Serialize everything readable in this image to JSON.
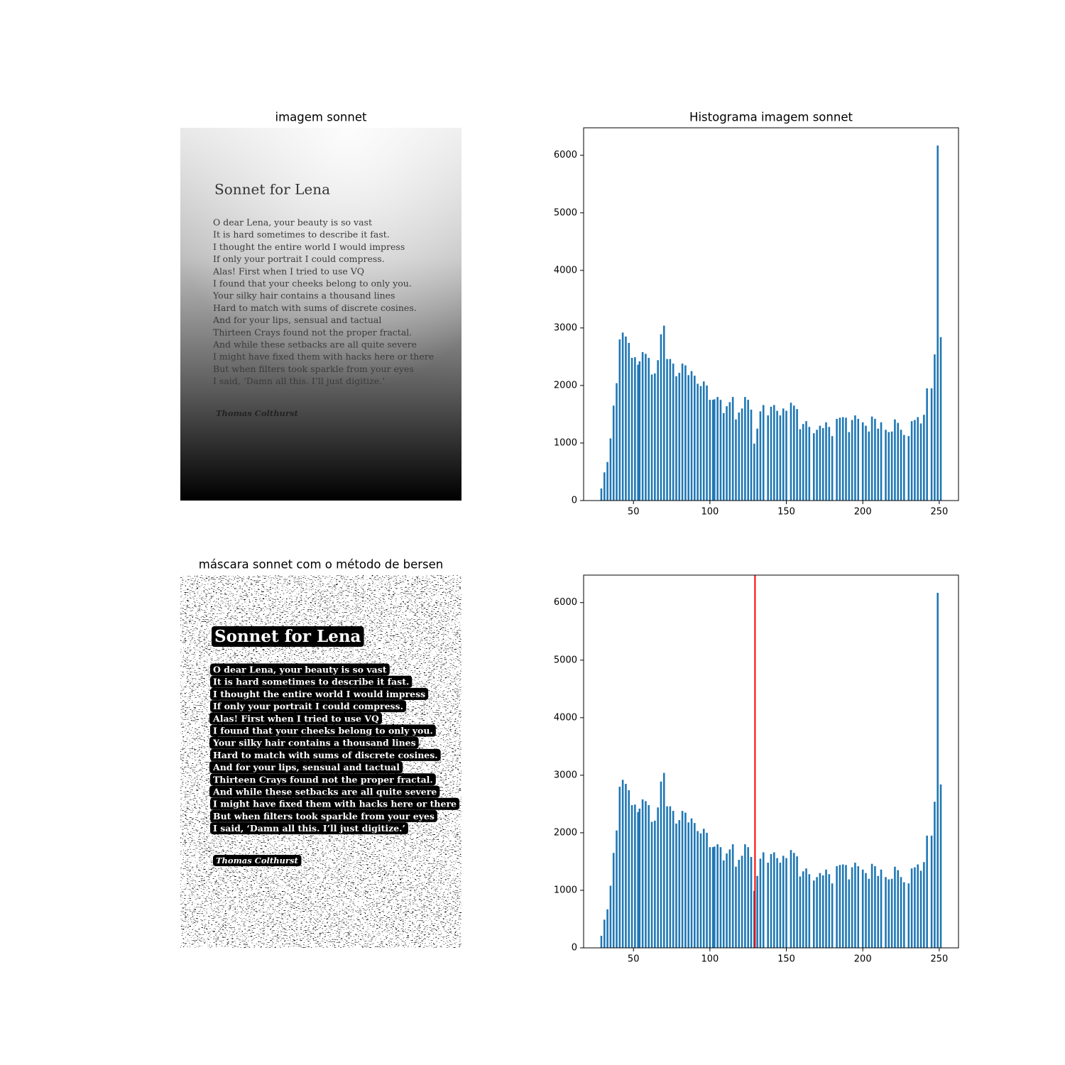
{
  "chart_data": [
    {
      "type": "image",
      "title": "imagem sonnet",
      "text": {
        "heading": "Sonnet for Lena",
        "lines": [
          "O dear Lena, your beauty is so vast",
          "It is hard sometimes to describe it fast.",
          "I thought the entire world I would impress",
          "If only your portrait I could compress.",
          "Alas! First when I tried to use VQ",
          "I found that your cheeks belong to only you.",
          "Your silky hair contains a thousand lines",
          "Hard to match with sums of discrete cosines.",
          "And for your lips, sensual and tactual",
          "Thirteen Crays found not the proper fractal.",
          "And while these setbacks are all quite severe",
          "I might have fixed them with hacks here or there",
          "But when filters took sparkle from your eyes",
          "I said, ‘Damn all this. I’ll just digitize.’"
        ],
        "author": "Thomas Colthurst"
      }
    },
    {
      "type": "bar",
      "title": "Histograma imagem sonnet",
      "color": "#1f77b4",
      "x": [
        29,
        31,
        33,
        35,
        37,
        39,
        41,
        43,
        45,
        47,
        49,
        51,
        53,
        54,
        56,
        58,
        60,
        62,
        64,
        66,
        68,
        70,
        72,
        74,
        76,
        78,
        80,
        82,
        84,
        86,
        88,
        90,
        92,
        94,
        96,
        98,
        100,
        102,
        103,
        105,
        107,
        109,
        111,
        113,
        115,
        117,
        119,
        121,
        123,
        125,
        127,
        129,
        131,
        133,
        135,
        138,
        140,
        142,
        144,
        146,
        148,
        150,
        153,
        155,
        157,
        159,
        161,
        163,
        165,
        168,
        170,
        172,
        174,
        176,
        178,
        180,
        183,
        185,
        187,
        189,
        191,
        193,
        195,
        197,
        200,
        202,
        204,
        206,
        208,
        210,
        212,
        215,
        217,
        219,
        221,
        223,
        225,
        227,
        230,
        232,
        234,
        236,
        238,
        240,
        242,
        245,
        247,
        249,
        251
      ],
      "values": [
        210,
        490,
        670,
        1080,
        1650,
        2040,
        2800,
        2920,
        2850,
        2740,
        2480,
        2490,
        2360,
        2420,
        2580,
        2550,
        2480,
        2190,
        2210,
        2440,
        2890,
        3040,
        2460,
        2460,
        2380,
        2160,
        2220,
        2380,
        2350,
        2180,
        2250,
        2170,
        2030,
        1990,
        2070,
        2000,
        1750,
        1750,
        1760,
        1800,
        1750,
        1520,
        1640,
        1710,
        1800,
        1410,
        1530,
        1600,
        1800,
        1750,
        1580,
        990,
        1250,
        1550,
        1660,
        1480,
        1630,
        1660,
        1560,
        1480,
        1600,
        1560,
        1700,
        1650,
        1590,
        1240,
        1330,
        1380,
        1280,
        1170,
        1230,
        1300,
        1260,
        1360,
        1280,
        1120,
        1420,
        1440,
        1450,
        1440,
        1190,
        1400,
        1480,
        1420,
        1360,
        1300,
        1200,
        1460,
        1420,
        1250,
        1360,
        1230,
        1190,
        1200,
        1410,
        1350,
        1230,
        1140,
        1120,
        1380,
        1400,
        1450,
        1340,
        1490,
        1950,
        1950,
        2540,
        6170,
        2840
      ],
      "xlim": [
        17.4,
        262.6
      ],
      "ylim": [
        0,
        6478
      ],
      "xticks": [
        50,
        100,
        150,
        200,
        250
      ],
      "yticks": [
        0,
        1000,
        2000,
        3000,
        4000,
        5000,
        6000
      ]
    },
    {
      "type": "binary_image",
      "title": "máscara sonnet com o método de bersen",
      "text": {
        "heading": "Sonnet for Lena",
        "lines": [
          "O dear Lena, your beauty is so vast",
          "It is hard sometimes to describe it fast.",
          "I thought the entire world I would impress",
          "If only your portrait I could compress.",
          "Alas! First when I tried to use VQ",
          "I found that your cheeks belong to only you.",
          "Your silky hair contains a thousand lines",
          "Hard to match with sums of discrete cosines.",
          "And for your lips, sensual and tactual",
          "Thirteen Crays found not the proper fractal.",
          "And while these setbacks are all quite severe",
          "I might have fixed them with hacks here or there",
          "But when filters took sparkle from your eyes",
          "I said, ‘Damn all this. I’ll just digitize.’"
        ],
        "author": "Thomas Colthurst"
      }
    },
    {
      "type": "bar",
      "color": "#1f77b4",
      "x": [
        29,
        31,
        33,
        35,
        37,
        39,
        41,
        43,
        45,
        47,
        49,
        51,
        53,
        54,
        56,
        58,
        60,
        62,
        64,
        66,
        68,
        70,
        72,
        74,
        76,
        78,
        80,
        82,
        84,
        86,
        88,
        90,
        92,
        94,
        96,
        98,
        100,
        102,
        103,
        105,
        107,
        109,
        111,
        113,
        115,
        117,
        119,
        121,
        123,
        125,
        127,
        129,
        131,
        133,
        135,
        138,
        140,
        142,
        144,
        146,
        148,
        150,
        153,
        155,
        157,
        159,
        161,
        163,
        165,
        168,
        170,
        172,
        174,
        176,
        178,
        180,
        183,
        185,
        187,
        189,
        191,
        193,
        195,
        197,
        200,
        202,
        204,
        206,
        208,
        210,
        212,
        215,
        217,
        219,
        221,
        223,
        225,
        227,
        230,
        232,
        234,
        236,
        238,
        240,
        242,
        245,
        247,
        249,
        251
      ],
      "values": [
        210,
        490,
        670,
        1080,
        1650,
        2040,
        2800,
        2920,
        2850,
        2740,
        2480,
        2490,
        2360,
        2420,
        2580,
        2550,
        2480,
        2190,
        2210,
        2440,
        2890,
        3040,
        2460,
        2460,
        2380,
        2160,
        2220,
        2380,
        2350,
        2180,
        2250,
        2170,
        2030,
        1990,
        2070,
        2000,
        1750,
        1750,
        1760,
        1800,
        1750,
        1520,
        1640,
        1710,
        1800,
        1410,
        1530,
        1600,
        1800,
        1750,
        1580,
        990,
        1250,
        1550,
        1660,
        1480,
        1630,
        1660,
        1560,
        1480,
        1600,
        1560,
        1700,
        1650,
        1590,
        1240,
        1330,
        1380,
        1280,
        1170,
        1230,
        1300,
        1260,
        1360,
        1280,
        1120,
        1420,
        1440,
        1450,
        1440,
        1190,
        1400,
        1480,
        1420,
        1360,
        1300,
        1200,
        1460,
        1420,
        1250,
        1360,
        1230,
        1190,
        1200,
        1410,
        1350,
        1230,
        1140,
        1120,
        1380,
        1400,
        1450,
        1340,
        1490,
        1950,
        1950,
        2540,
        6170,
        2840
      ],
      "vline": {
        "x": 129.5,
        "color": "#ff0000"
      },
      "xlim": [
        17.4,
        262.6
      ],
      "ylim": [
        0,
        6478
      ],
      "xticks": [
        50,
        100,
        150,
        200,
        250
      ],
      "yticks": [
        0,
        1000,
        2000,
        3000,
        4000,
        5000,
        6000
      ]
    }
  ]
}
